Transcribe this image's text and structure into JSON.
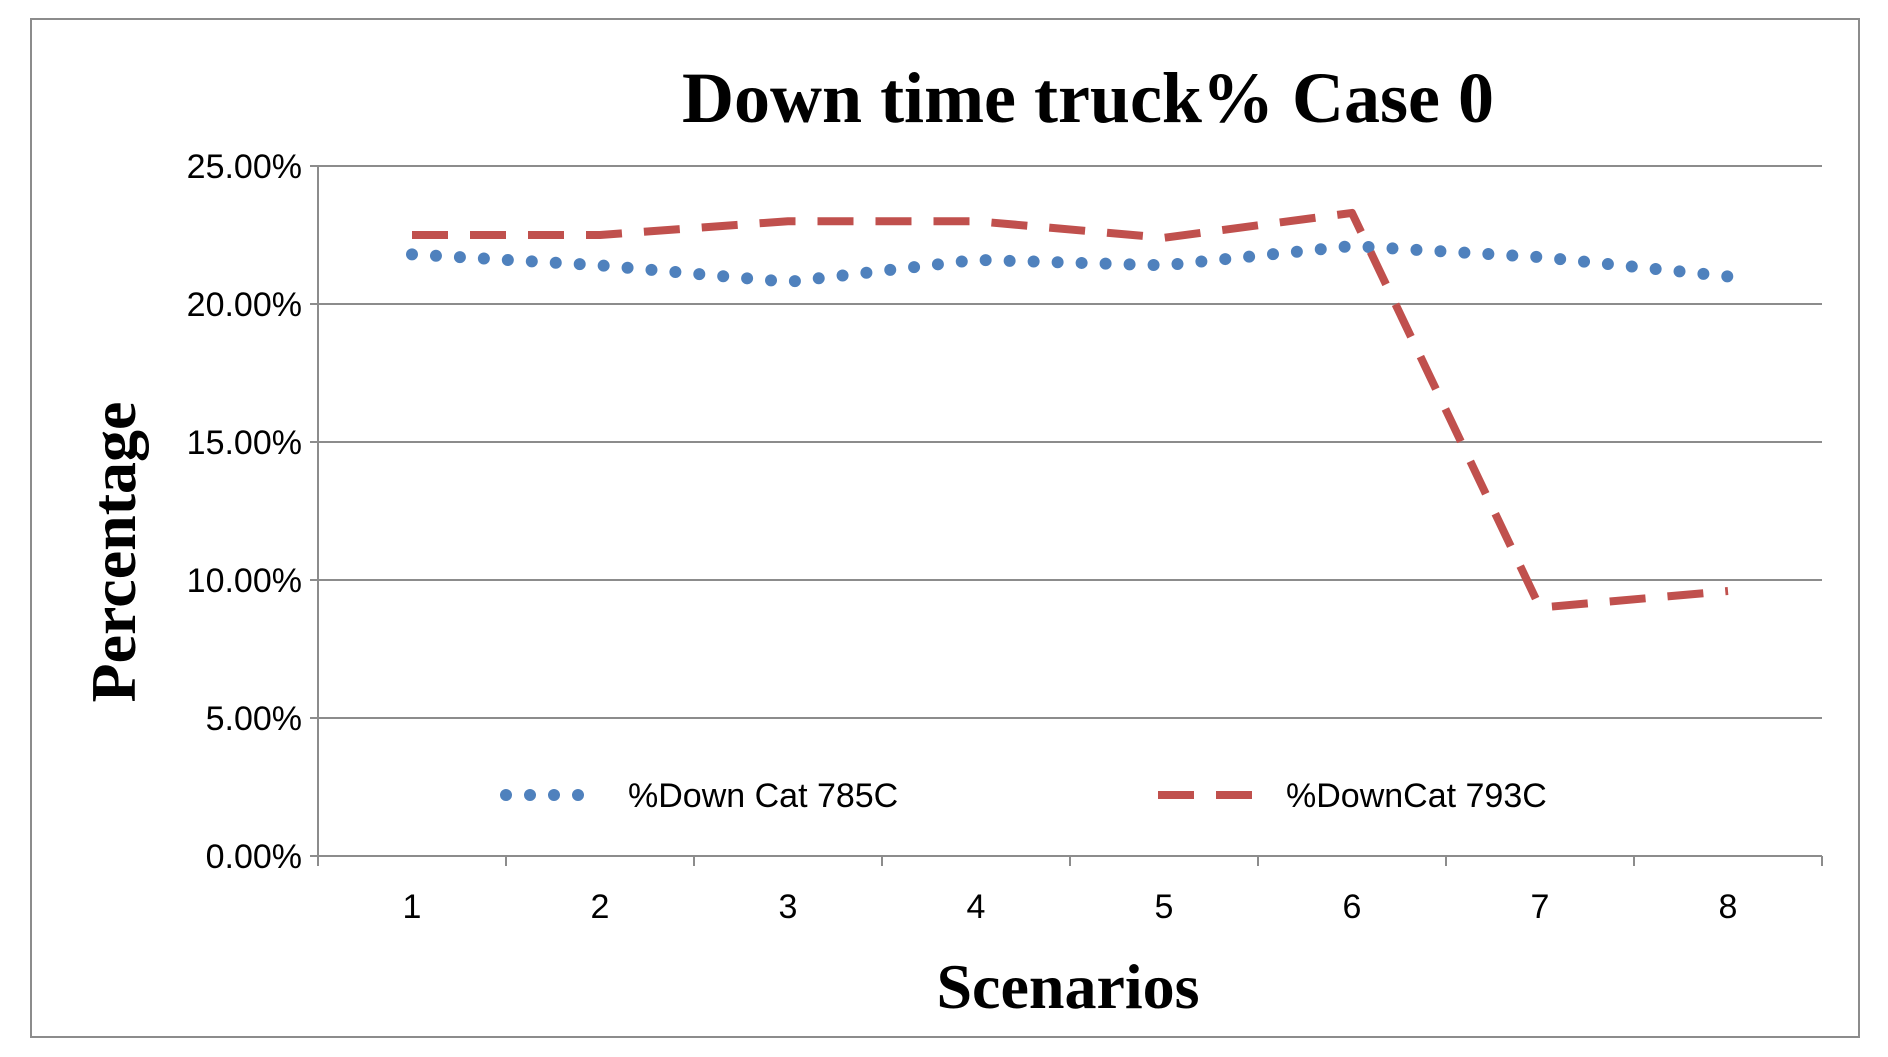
{
  "chart_data": {
    "type": "line",
    "title": "Down time truck% Case 0",
    "xlabel": "Scenarios",
    "ylabel": "Percentage",
    "categories": [
      "1",
      "2",
      "3",
      "4",
      "5",
      "6",
      "7",
      "8"
    ],
    "y_ticks": [
      "0.00%",
      "5.00%",
      "10.00%",
      "15.00%",
      "20.00%",
      "25.00%"
    ],
    "ylim": [
      0,
      25
    ],
    "grid": true,
    "legend_position": "bottom-inside",
    "series": [
      {
        "name": "%Down Cat 785C",
        "values": [
          21.8,
          21.4,
          20.8,
          21.6,
          21.4,
          22.1,
          21.7,
          21.0
        ],
        "color": "#4f81bd",
        "style": "dotted"
      },
      {
        "name": "%DownCat 793C",
        "values": [
          22.5,
          22.5,
          23.0,
          23.0,
          22.4,
          23.3,
          9.0,
          9.6
        ],
        "color": "#c0504d",
        "style": "dashed"
      }
    ]
  }
}
